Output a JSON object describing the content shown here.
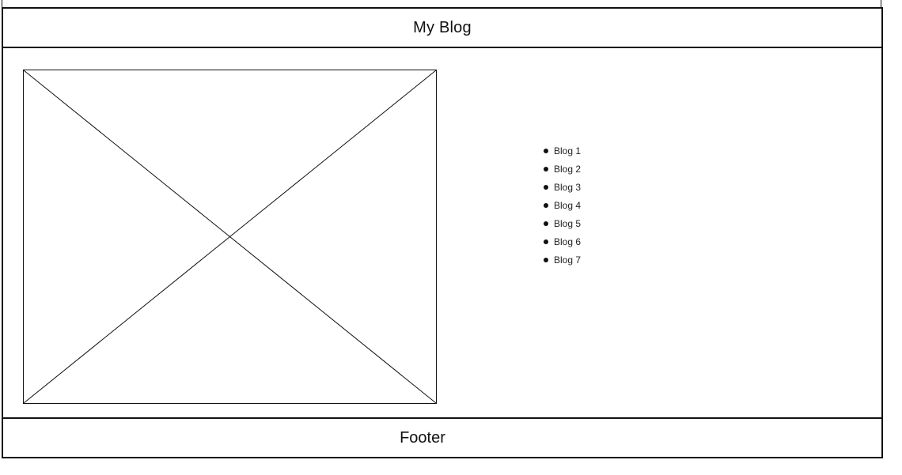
{
  "header": {
    "title": "My Blog"
  },
  "main": {
    "image": {
      "icon": "image-placeholder-icon"
    },
    "blog_list": [
      {
        "label": "Blog 1"
      },
      {
        "label": "Blog 2"
      },
      {
        "label": "Blog 3"
      },
      {
        "label": "Blog 4"
      },
      {
        "label": "Blog 5"
      },
      {
        "label": "Blog 6"
      },
      {
        "label": "Blog 7"
      }
    ]
  },
  "footer": {
    "text": "Footer"
  },
  "colors": {
    "line": "#111111",
    "background": "#ffffff"
  }
}
